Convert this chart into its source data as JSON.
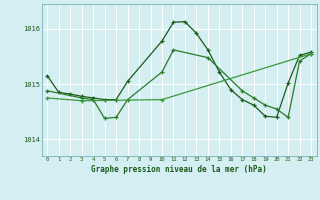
{
  "title": "Graphe pression niveau de la mer (hPa)",
  "bg_color": "#d4eef2",
  "grid_color": "#b0d8e0",
  "line_color_dark": "#1a5c1a",
  "line_color_mid": "#2a7a2a",
  "line_color_light": "#3a9a3a",
  "xlim": [
    -0.5,
    23.5
  ],
  "ylim": [
    1013.7,
    1016.45
  ],
  "yticks": [
    1014,
    1015,
    1016
  ],
  "xticks": [
    0,
    1,
    2,
    3,
    4,
    5,
    6,
    7,
    8,
    9,
    10,
    11,
    12,
    13,
    14,
    15,
    16,
    17,
    18,
    19,
    20,
    21,
    22,
    23
  ],
  "line1_x": [
    0,
    1,
    2,
    3,
    4,
    5,
    6,
    7,
    10,
    11,
    12,
    13,
    14,
    15,
    16,
    17,
    18,
    19,
    20,
    21,
    22,
    23
  ],
  "line1_y": [
    1015.15,
    1014.85,
    1014.82,
    1014.78,
    1014.75,
    1014.72,
    1014.72,
    1015.05,
    1015.78,
    1016.12,
    1016.13,
    1015.92,
    1015.62,
    1015.22,
    1014.9,
    1014.72,
    1014.62,
    1014.42,
    1014.4,
    1015.02,
    1015.52,
    1015.58
  ],
  "line2_x": [
    0,
    3,
    4,
    5,
    6,
    7,
    10,
    11,
    14,
    17,
    18,
    19,
    20,
    21,
    22,
    23
  ],
  "line2_y": [
    1014.88,
    1014.75,
    1014.72,
    1014.38,
    1014.4,
    1014.72,
    1015.22,
    1015.62,
    1015.48,
    1014.88,
    1014.75,
    1014.62,
    1014.55,
    1014.4,
    1015.42,
    1015.55
  ],
  "line3_x": [
    0,
    3,
    10,
    23
  ],
  "line3_y": [
    1014.75,
    1014.7,
    1014.72,
    1015.55
  ]
}
